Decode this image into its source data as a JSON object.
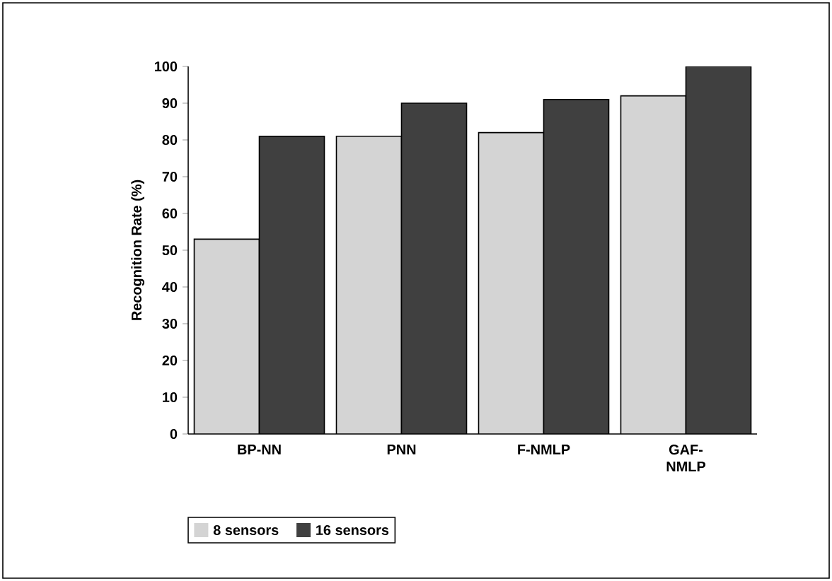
{
  "chart_data": {
    "type": "bar",
    "ylabel": "Recognition Rate (%)",
    "categories": [
      "BP-NN",
      "PNN",
      "F-NMLP",
      "GAF-NMLP"
    ],
    "series": [
      {
        "name": "8 sensors",
        "color": "#d4d4d4",
        "values": [
          53,
          81,
          82,
          92
        ]
      },
      {
        "name": "16 sensors",
        "color": "#404040",
        "values": [
          81,
          90,
          91,
          100
        ]
      }
    ],
    "ylim": [
      0,
      100
    ],
    "yticks": [
      0,
      10,
      20,
      30,
      40,
      50,
      60,
      70,
      80,
      90,
      100
    ],
    "grid": false,
    "legend": "bottom"
  }
}
